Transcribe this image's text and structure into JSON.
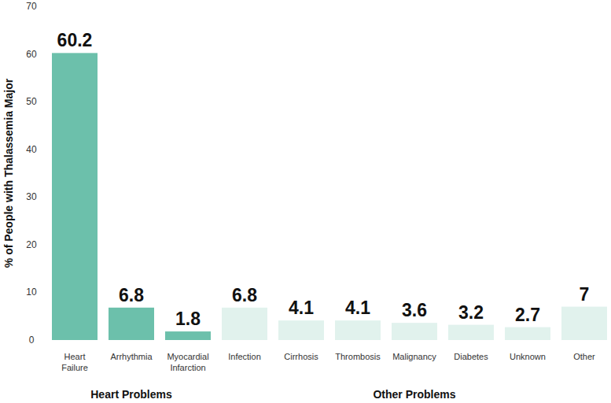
{
  "chart_data": {
    "type": "bar",
    "y_label": "% of People with Thalassemia Major",
    "categories": [
      "Heart Failure",
      "Arrhythmia",
      "Myocardial Infarction",
      "Infection",
      "Cirrhosis",
      "Thrombosis",
      "Malignancy",
      "Diabetes",
      "Unknown",
      "Other"
    ],
    "values": [
      60.2,
      6.8,
      1.8,
      6.8,
      4.1,
      4.1,
      3.6,
      3.2,
      2.7,
      7
    ],
    "colors": [
      "#6cc0ab",
      "#6cc0ab",
      "#6cc0ab",
      "#e1f2ed",
      "#e1f2ed",
      "#e1f2ed",
      "#e1f2ed",
      "#e1f2ed",
      "#e1f2ed",
      "#e1f2ed"
    ],
    "groups": [
      {
        "name": "Heart Problems",
        "start": 0,
        "end": 2
      },
      {
        "name": "Other Problems",
        "start": 3,
        "end": 9
      }
    ],
    "ylim": [
      0,
      70
    ],
    "yticks": [
      0,
      10,
      20,
      30,
      40,
      50,
      60,
      70
    ],
    "grid": false,
    "data_labels": true
  }
}
